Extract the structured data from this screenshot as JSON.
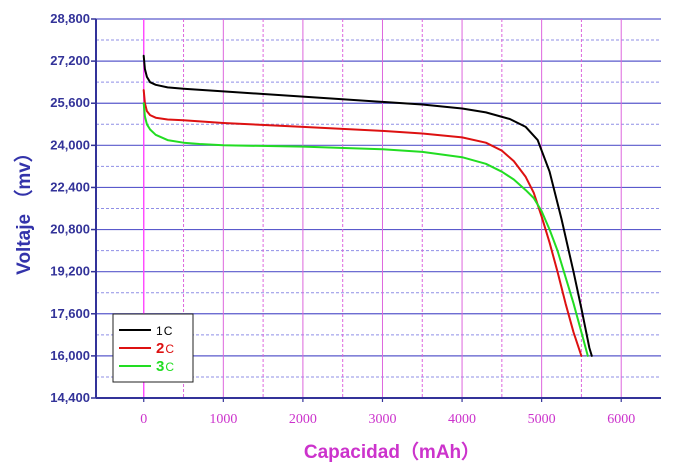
{
  "chart_data": {
    "type": "line",
    "title": "",
    "xlabel": "Capacidad（mAh）",
    "ylabel": "Voltaje （mv）",
    "xlim": [
      -600,
      6500
    ],
    "ylim": [
      14400,
      28800
    ],
    "x_ticks": [
      0,
      1000,
      2000,
      3000,
      4000,
      5000,
      6000
    ],
    "x_tick_labels": [
      "0",
      "1000",
      "2000",
      "3000",
      "4000",
      "5000",
      "6000"
    ],
    "y_ticks": [
      14400,
      16000,
      17600,
      19200,
      20800,
      22400,
      24000,
      25600,
      27200,
      28800
    ],
    "y_tick_labels": [
      "14,400",
      "16,000",
      "17,600",
      "19,200",
      "20,800",
      "22,400",
      "24,000",
      "25,600",
      "27,200",
      "28,800"
    ],
    "grid": true,
    "legend_position": "bottom-left",
    "series": [
      {
        "name": "1C",
        "legend_number": "1",
        "legend_unit": "C",
        "color": "#000000",
        "x": [
          0,
          15,
          40,
          80,
          150,
          300,
          500,
          1000,
          2000,
          3000,
          3500,
          4000,
          4300,
          4600,
          4800,
          4950,
          5100,
          5250,
          5400,
          5500,
          5600,
          5630
        ],
        "y": [
          27400,
          26900,
          26600,
          26400,
          26300,
          26200,
          26150,
          26050,
          25850,
          25650,
          25550,
          25400,
          25250,
          25000,
          24700,
          24200,
          23000,
          21200,
          19200,
          17800,
          16300,
          16000
        ]
      },
      {
        "name": "2C",
        "legend_number": "2",
        "legend_unit": "C",
        "color": "#dd1111",
        "x": [
          0,
          15,
          40,
          80,
          150,
          300,
          500,
          1000,
          2000,
          3000,
          3500,
          4000,
          4300,
          4500,
          4650,
          4800,
          4900,
          5000,
          5100,
          5200,
          5300,
          5400,
          5500
        ],
        "y": [
          26100,
          25600,
          25300,
          25150,
          25050,
          24980,
          24950,
          24850,
          24700,
          24550,
          24450,
          24300,
          24100,
          23800,
          23400,
          22800,
          22200,
          21300,
          20300,
          19200,
          18000,
          16900,
          16000
        ]
      },
      {
        "name": "3C",
        "legend_number": "3",
        "legend_unit": "C",
        "color": "#22dd22",
        "x": [
          0,
          15,
          40,
          80,
          150,
          300,
          500,
          700,
          1000,
          2000,
          3000,
          3500,
          4000,
          4300,
          4500,
          4650,
          4800,
          4900,
          5000,
          5100,
          5200,
          5300,
          5400,
          5500,
          5580
        ],
        "y": [
          25600,
          25100,
          24800,
          24600,
          24400,
          24200,
          24100,
          24050,
          24000,
          23950,
          23850,
          23750,
          23550,
          23300,
          23000,
          22700,
          22300,
          22000,
          21500,
          20800,
          20000,
          19000,
          18000,
          16900,
          16000
        ]
      }
    ],
    "colors": {
      "axis": "#333399",
      "y_major_grid": "#5a5acc",
      "y_minor_grid": "#8f8fe6",
      "x_grid": "#dd66dd",
      "x_zero_line": "#ff44ff"
    }
  }
}
